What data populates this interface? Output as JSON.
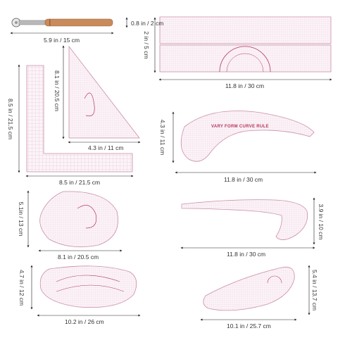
{
  "colors": {
    "ruler_fill": "#fbf4f8",
    "ruler_edge": "#c98aa6",
    "grid_line": "#e3b6c9",
    "accent": "#b4365f",
    "wood": "#c98a5c",
    "dimension_line": "#222222",
    "label_text": "#333333"
  },
  "products": [
    {
      "id": "tracing-wheel",
      "icon": "tracing-wheel-tool",
      "dims": [
        "0.8 in / 2 cm",
        "5.9 in / 15 cm"
      ]
    },
    {
      "id": "straight-ruler-pair",
      "icon": "straight-grid-ruler",
      "dims": [
        "2 in / 5 cm",
        "11.8 in / 30 cm"
      ]
    },
    {
      "id": "triangle-ruler",
      "icon": "triangle-ruler",
      "dims": [
        "8.1 in / 20.5 cm",
        "4.3 in / 11 cm"
      ]
    },
    {
      "id": "l-square-ruler",
      "icon": "l-square-ruler",
      "dims": [
        "8.5 in / 21.5 cm",
        "8.5 in / 21.5 cm"
      ]
    },
    {
      "id": "vary-form-curve",
      "icon": "french-curve-ruler",
      "dims": [
        "4.3 in / 11 cm",
        "11.8 in / 30 cm"
      ],
      "printed_text": "VARY FORM CURVE RULE"
    },
    {
      "id": "teardrop-ruler",
      "icon": "teardrop-template-ruler",
      "dims": [
        "5.1in / 13 cm",
        "8.1 in / 20.5 cm"
      ]
    },
    {
      "id": "hip-curve",
      "icon": "hip-curve-ruler",
      "dims": [
        "3.9 in / 10 cm",
        "11.8 in / 30 cm"
      ]
    },
    {
      "id": "oval-template",
      "icon": "oval-template-ruler",
      "dims": [
        "4.7 in / 12 cm",
        "10.2 in / 26 cm"
      ]
    },
    {
      "id": "armhole-template",
      "icon": "armhole-template-ruler",
      "dims": [
        "5.4 in / 13.7 cm",
        "10.1 in / 25.7 cm"
      ]
    }
  ]
}
